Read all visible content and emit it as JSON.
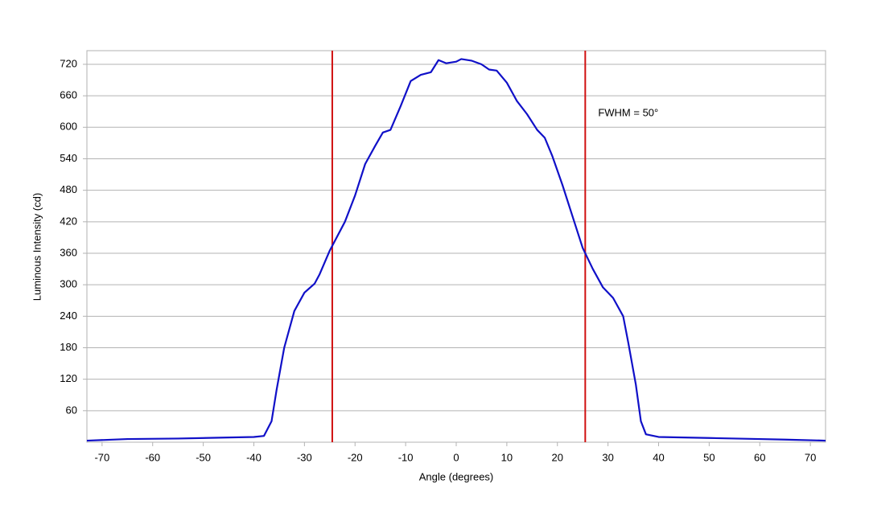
{
  "chart_data": {
    "type": "line",
    "x_label": "Angle (degrees)",
    "y_label": "Luminous Intensity (cd)",
    "annotation": "FWHM = 50°",
    "series": [
      {
        "name": "Luminous Intensity",
        "color": "#1010c8",
        "x": [
          -73,
          -65,
          -55,
          -45,
          -40,
          -38,
          -36.5,
          -35.5,
          -34,
          -32,
          -30,
          -28,
          -27,
          -25,
          -22,
          -20,
          -18,
          -16,
          -14.5,
          -13,
          -11,
          -9,
          -7,
          -5,
          -3.5,
          -2,
          0,
          1,
          3,
          5,
          6.5,
          8,
          10,
          12,
          14,
          16,
          17.5,
          19,
          21,
          23,
          25,
          27,
          29,
          31,
          33,
          34,
          35.5,
          36.5,
          37.5,
          40,
          50,
          60,
          65,
          73
        ],
        "values": [
          3,
          6,
          7,
          9,
          10,
          12,
          40,
          100,
          180,
          250,
          285,
          302,
          320,
          365,
          420,
          470,
          530,
          565,
          590,
          595,
          640,
          688,
          700,
          705,
          728,
          722,
          725,
          730,
          727,
          720,
          710,
          708,
          685,
          650,
          625,
          595,
          580,
          545,
          490,
          430,
          370,
          330,
          295,
          275,
          240,
          190,
          110,
          40,
          15,
          10,
          8,
          6,
          5,
          3
        ]
      }
    ],
    "vlines": {
      "color": "#d01010",
      "x": [
        -24.5,
        25.5
      ]
    },
    "xlim": [
      -73,
      73
    ],
    "xticks": [
      -70,
      -60,
      -50,
      -40,
      -30,
      -20,
      -10,
      0,
      10,
      20,
      30,
      40,
      50,
      60,
      70
    ],
    "ylim": [
      0,
      746
    ],
    "yticks": [
      60,
      120,
      180,
      240,
      300,
      360,
      420,
      480,
      540,
      600,
      660,
      720
    ],
    "grid": true
  }
}
